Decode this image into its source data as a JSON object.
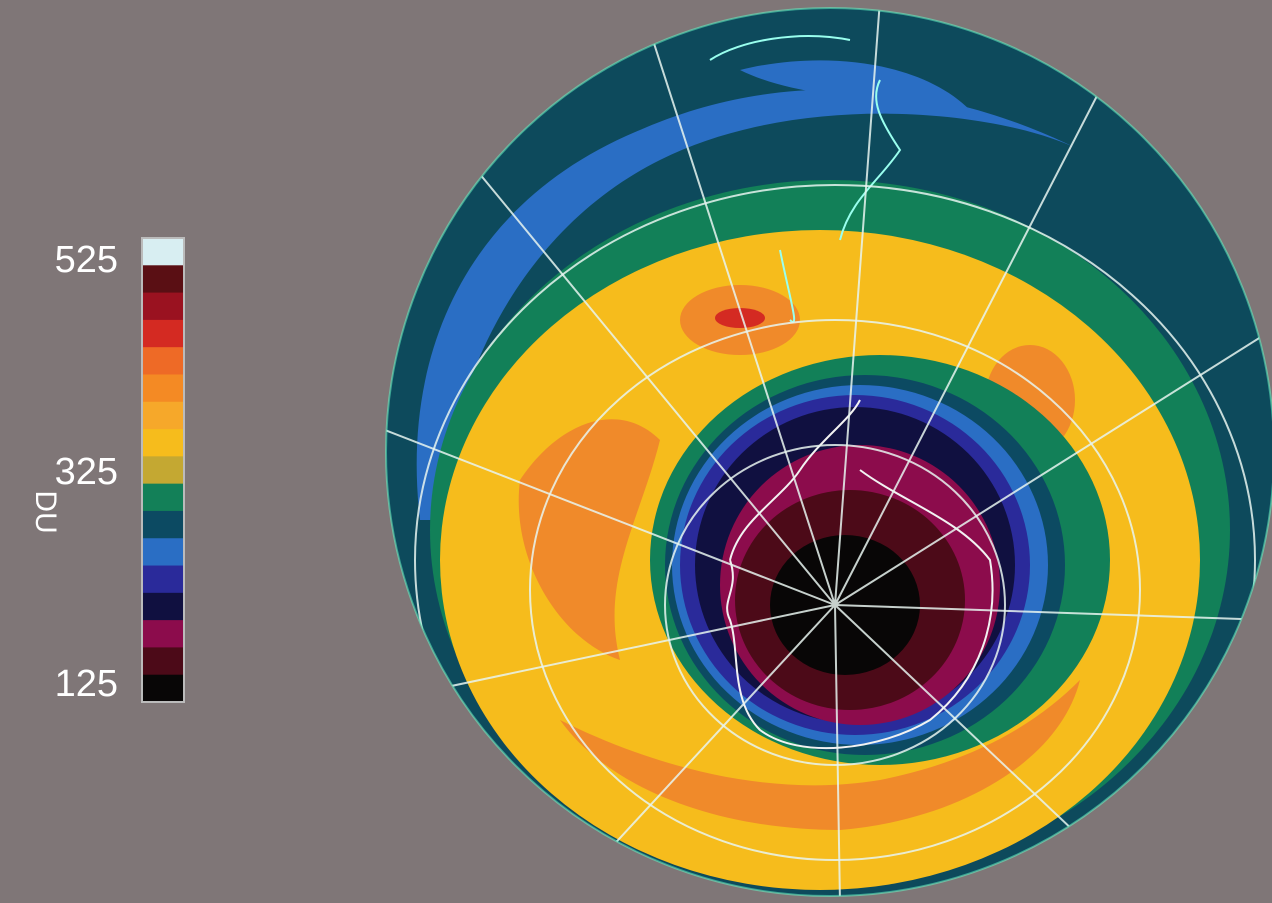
{
  "colorbar": {
    "title": "DU",
    "range": [
      125,
      525
    ],
    "ticks": [
      125,
      325,
      525
    ],
    "colors": [
      "#d8eef2",
      "#5a0f14",
      "#9a1220",
      "#d42a22",
      "#ee6a26",
      "#f48a24",
      "#f6a82a",
      "#f6bc1c",
      "#c4a832",
      "#138058",
      "#0c4a62",
      "#2a6ec4",
      "#2a2a9a",
      "#101040",
      "#8c0c4c",
      "#4c0a18",
      "#080606"
    ]
  }
}
